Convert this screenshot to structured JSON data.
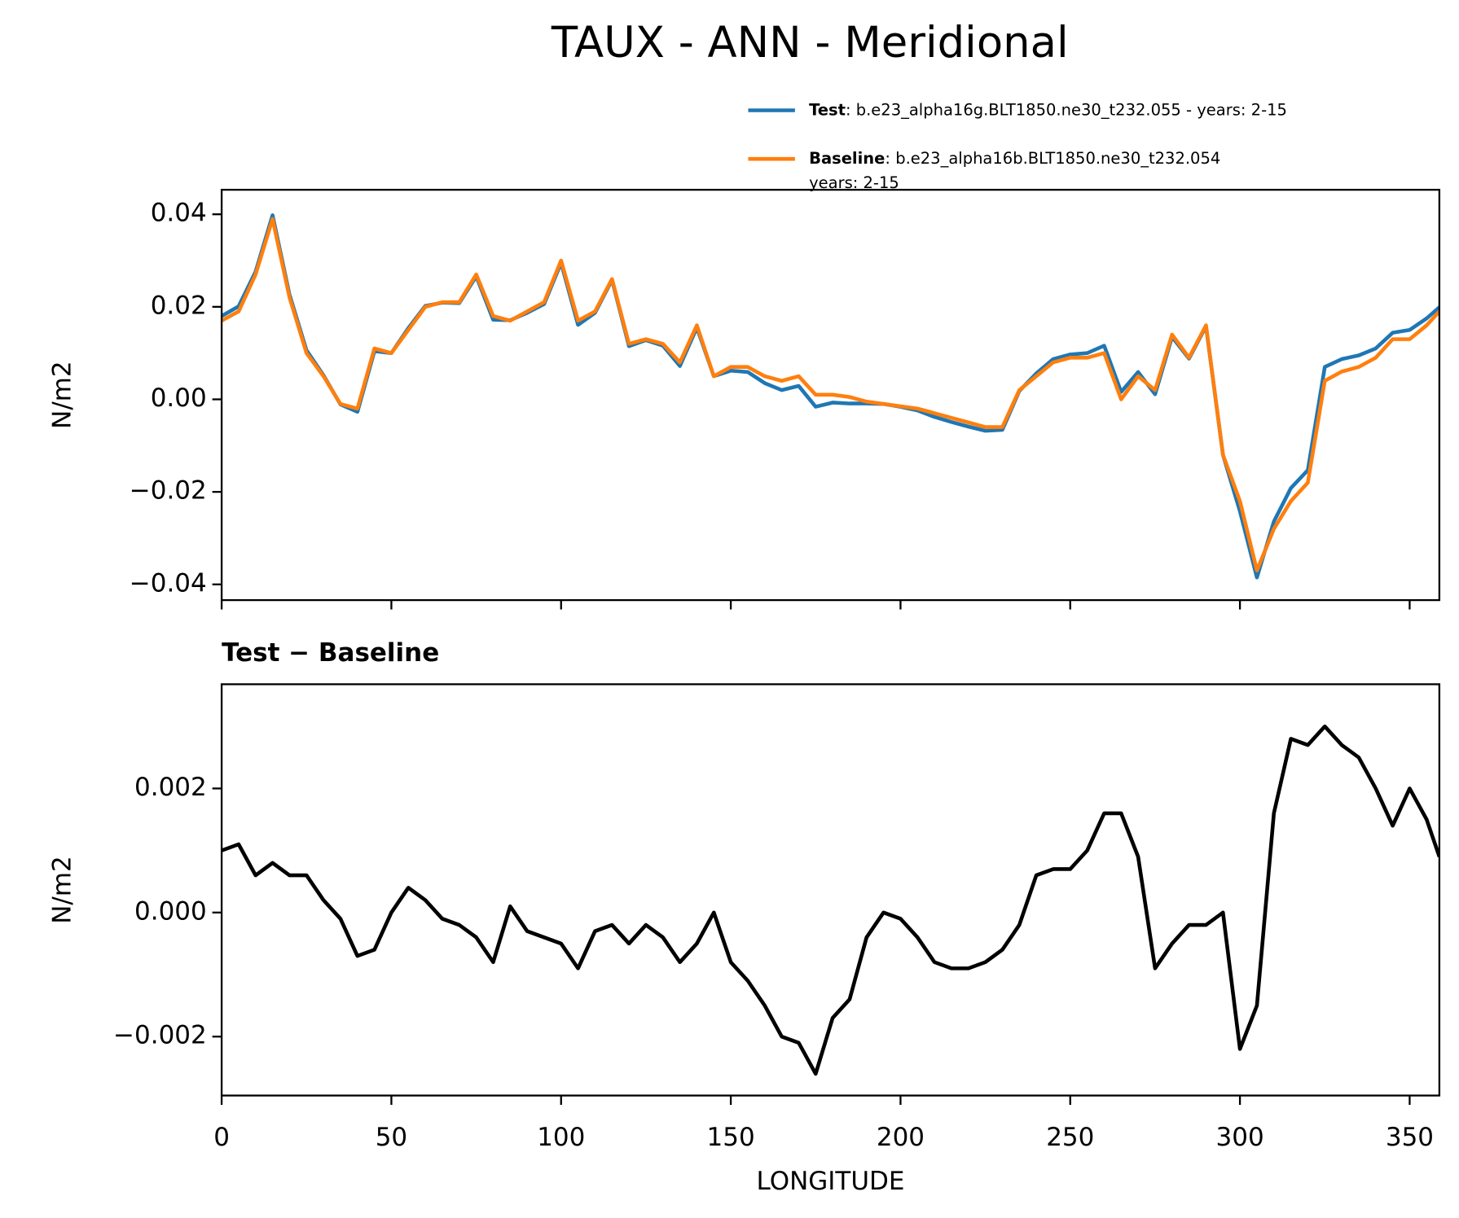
{
  "chart_data": [
    {
      "type": "line",
      "title": "TAUX - ANN - Meridional",
      "ylabel": "N/m2",
      "x": [
        0,
        5,
        10,
        15,
        20,
        25,
        30,
        35,
        40,
        45,
        50,
        55,
        60,
        65,
        70,
        75,
        80,
        85,
        90,
        95,
        100,
        105,
        110,
        115,
        120,
        125,
        130,
        135,
        140,
        145,
        150,
        155,
        160,
        165,
        170,
        175,
        180,
        185,
        190,
        195,
        200,
        205,
        210,
        215,
        220,
        225,
        230,
        235,
        240,
        245,
        250,
        255,
        260,
        265,
        270,
        275,
        280,
        285,
        290,
        295,
        300,
        305,
        310,
        315,
        320,
        325,
        330,
        335,
        340,
        345,
        350,
        355,
        358.75
      ],
      "series": [
        {
          "name": "Test",
          "legend_text": [
            ": b.e23_alpha16g.BLT1850.ne30_t232.055 - years: 2-15"
          ],
          "color": "#1f77b4",
          "values": [
            0.018,
            0.0201,
            0.0276,
            0.0398,
            0.0226,
            0.0106,
            0.0052,
            -0.0011,
            -0.0027,
            0.0104,
            0.01,
            0.0154,
            0.0202,
            0.0209,
            0.0208,
            0.0266,
            0.0172,
            0.0171,
            0.0187,
            0.0206,
            0.0295,
            0.0161,
            0.0187,
            0.0258,
            0.0115,
            0.0128,
            0.0116,
            0.0072,
            0.0155,
            0.005,
            0.0062,
            0.0059,
            0.0035,
            0.002,
            0.0029,
            -0.0016,
            -0.0007,
            -0.0009,
            -0.0009,
            -0.001,
            -0.0016,
            -0.0024,
            -0.0038,
            -0.0049,
            -0.0059,
            -0.0068,
            -0.0066,
            0.0018,
            0.0056,
            0.0087,
            0.0097,
            0.01,
            0.0116,
            0.0016,
            0.0059,
            0.0011,
            0.0135,
            0.0088,
            0.0158,
            -0.012,
            -0.0242,
            -0.0385,
            -0.0264,
            -0.0192,
            -0.0153,
            0.007,
            0.0087,
            0.0095,
            0.011,
            0.0144,
            0.015,
            0.0175,
            0.0199
          ]
        },
        {
          "name": "Baseline",
          "legend_text": [
            ": b.e23_alpha16b.BLT1850.ne30_t232.054",
            "years: 2-15"
          ],
          "color": "#ff7f0e",
          "values": [
            0.017,
            0.019,
            0.027,
            0.039,
            0.022,
            0.01,
            0.005,
            -0.001,
            -0.002,
            0.011,
            0.01,
            0.015,
            0.02,
            0.021,
            0.021,
            0.027,
            0.018,
            0.017,
            0.019,
            0.021,
            0.03,
            0.017,
            0.019,
            0.026,
            0.012,
            0.013,
            0.012,
            0.008,
            0.016,
            0.005,
            0.007,
            0.007,
            0.005,
            0.004,
            0.005,
            0.001,
            0.001,
            0.0005,
            -0.0005,
            -0.001,
            -0.0015,
            -0.002,
            -0.003,
            -0.004,
            -0.005,
            -0.006,
            -0.006,
            0.002,
            0.005,
            0.008,
            0.009,
            0.009,
            0.01,
            0.0,
            0.005,
            0.002,
            0.014,
            0.009,
            0.016,
            -0.012,
            -0.022,
            -0.037,
            -0.028,
            -0.022,
            -0.018,
            0.004,
            0.006,
            0.007,
            0.009,
            0.013,
            0.013,
            0.016,
            0.019
          ]
        }
      ],
      "xlim": [
        0,
        358.75
      ],
      "xticks": [
        0,
        50,
        100,
        150,
        200,
        250,
        300,
        350
      ],
      "xtick_labels": false,
      "ylim": [
        -0.0434,
        0.0453
      ],
      "yticks": [
        {
          "value": -0.04,
          "label": "−0.04"
        },
        {
          "value": -0.02,
          "label": "−0.02"
        },
        {
          "value": 0,
          "label": "0.00"
        },
        0.02,
        0.04
      ]
    },
    {
      "type": "line",
      "title": "Test − Baseline",
      "ylabel": "N/m2",
      "xlabel": "LONGITUDE",
      "x": [
        0,
        5,
        10,
        15,
        20,
        25,
        30,
        35,
        40,
        45,
        50,
        55,
        60,
        65,
        70,
        75,
        80,
        85,
        90,
        95,
        100,
        105,
        110,
        115,
        120,
        125,
        130,
        135,
        140,
        145,
        150,
        155,
        160,
        165,
        170,
        175,
        180,
        185,
        190,
        195,
        200,
        205,
        210,
        215,
        220,
        225,
        230,
        235,
        240,
        245,
        250,
        255,
        260,
        265,
        270,
        275,
        280,
        285,
        290,
        295,
        300,
        305,
        310,
        315,
        320,
        325,
        330,
        335,
        340,
        345,
        350,
        355,
        358.75
      ],
      "series": [
        {
          "color": "#000000",
          "values": [
            0.001,
            0.0011,
            0.0006,
            0.0008,
            0.0006,
            0.0006,
            0.0002,
            -0.0001,
            -0.0007,
            -0.0006,
            0.0,
            0.0004,
            0.0002,
            -0.0001,
            -0.0002,
            -0.0004,
            -0.0008,
            0.0001,
            -0.0003,
            -0.0004,
            -0.0005,
            -0.0009,
            -0.0003,
            -0.0002,
            -0.0005,
            -0.0002,
            -0.0004,
            -0.0008,
            -0.0005,
            0.0,
            -0.0008,
            -0.0011,
            -0.0015,
            -0.002,
            -0.0021,
            -0.0026,
            -0.0017,
            -0.0014,
            -0.0004,
            0.0,
            -0.0001,
            -0.0004,
            -0.0008,
            -0.0009,
            -0.0009,
            -0.0008,
            -0.0006,
            -0.0002,
            0.0006,
            0.0007,
            0.0007,
            0.001,
            0.0016,
            0.0016,
            0.0009,
            -0.0009,
            -0.0005,
            -0.0002,
            -0.0002,
            0.0,
            -0.0022,
            -0.0015,
            0.0016,
            0.0028,
            0.0027,
            0.003,
            0.0027,
            0.0025,
            0.002,
            0.0014,
            0.002,
            0.0015,
            0.0009
          ]
        }
      ],
      "xlim": [
        0,
        358.75
      ],
      "xticks": [
        0,
        50,
        100,
        150,
        200,
        250,
        300,
        350
      ],
      "xtick_labels": true,
      "ylim": [
        -0.00295,
        0.00368
      ],
      "yticks": [
        {
          "value": -0.002,
          "label": "−0.002"
        },
        {
          "value": 0,
          "label": "0.000"
        },
        {
          "value": 0.002,
          "label": "0.002"
        }
      ]
    }
  ]
}
